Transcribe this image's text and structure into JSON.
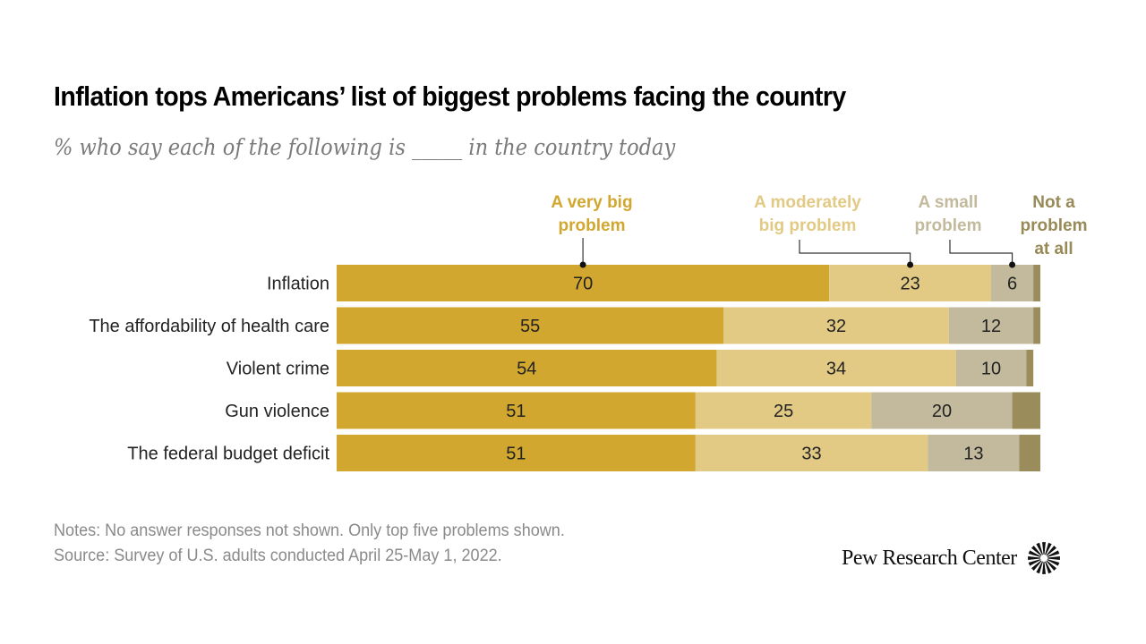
{
  "chart_data": {
    "type": "bar",
    "orientation": "horizontal",
    "stacked": true,
    "title": "Inflation tops Americans’ list of biggest problems facing the country",
    "subtitle": "% who say each of the following is _____ in the country today",
    "xlabel": "",
    "ylabel": "",
    "xlim": [
      0,
      100
    ],
    "grid": false,
    "legend_placement": "top",
    "categories": [
      "Inflation",
      "The affordability of health care",
      "Violent crime",
      "Gun violence",
      "The federal budget deficit"
    ],
    "series": [
      {
        "name": "A very big problem",
        "legend_lines": [
          "A very big",
          "problem"
        ],
        "color": "#d2a72f",
        "values": [
          70,
          55,
          54,
          51,
          51
        ],
        "show_labels": true
      },
      {
        "name": "A moderately big problem",
        "legend_lines": [
          "A moderately",
          "big problem"
        ],
        "color": "#e2ca84",
        "values": [
          23,
          32,
          34,
          25,
          33
        ],
        "show_labels": true
      },
      {
        "name": "A small problem",
        "legend_lines": [
          "A small",
          "problem"
        ],
        "color": "#c3b99c",
        "values": [
          6,
          12,
          10,
          20,
          13
        ],
        "show_labels": true
      },
      {
        "name": "Not a problem at all",
        "legend_lines": [
          "Not a",
          "problem",
          "at all"
        ],
        "color": "#9a8c5b",
        "values": [
          1,
          1,
          1,
          4,
          3
        ],
        "show_labels": false
      }
    ],
    "legend_colors": [
      "#d2a72f",
      "#e2ca84",
      "#c3b99c",
      "#978a57"
    ]
  },
  "notes": {
    "line1": "Notes: No answer responses not shown. Only top five problems shown.",
    "line2": "Source: Survey of U.S. adults conducted April 25-May 1, 2022."
  },
  "branding": {
    "name": "Pew Research Center",
    "icon": "pew-sunburst-icon"
  }
}
